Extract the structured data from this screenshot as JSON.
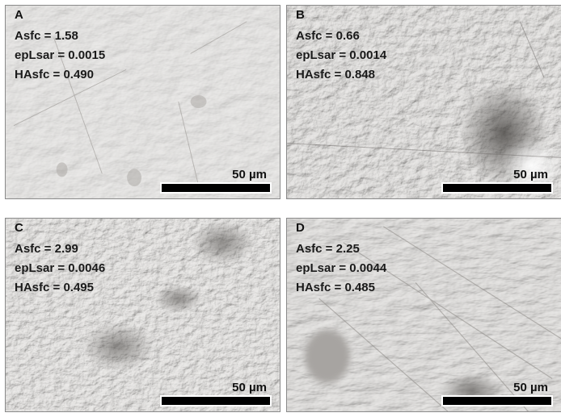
{
  "scale_label": "50 µm",
  "panels": [
    {
      "label": "A",
      "asfc": "Asfc = 1.58",
      "eplsar": "epLsar = 0.0015",
      "hasfc": "HAsfc = 0.490",
      "base_color": "#d6d4d1"
    },
    {
      "label": "B",
      "asfc": "Asfc = 0.66",
      "eplsar": "epLsar = 0.0014",
      "hasfc": "HAsfc = 0.848",
      "base_color": "#c9c6c2"
    },
    {
      "label": "C",
      "asfc": "Asfc = 2.99",
      "eplsar": "epLsar = 0.0046",
      "hasfc": "HAsfc = 0.495",
      "base_color": "#cfccc8"
    },
    {
      "label": "D",
      "asfc": "Asfc = 2.25",
      "eplsar": "epLsar = 0.0044",
      "hasfc": "HAsfc = 0.485",
      "base_color": "#cac7c3"
    }
  ]
}
